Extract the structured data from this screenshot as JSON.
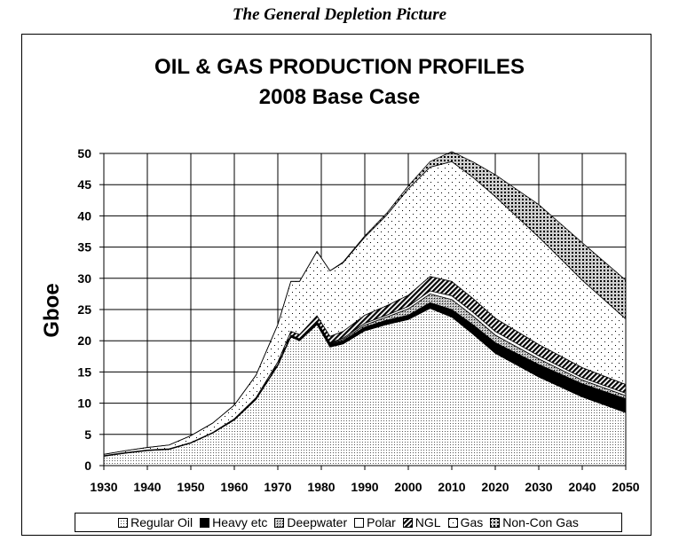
{
  "header": {
    "heading": "The General Depletion Picture"
  },
  "chart_data": {
    "type": "area",
    "stacked": true,
    "title": "OIL & GAS PRODUCTION PROFILES",
    "subtitle": "2008 Base Case",
    "xlabel": "",
    "ylabel": "Gboe",
    "xlim": [
      1930,
      2050
    ],
    "ylim": [
      0,
      50
    ],
    "x_ticks": [
      "1930",
      "1940",
      "1950",
      "1960",
      "1970",
      "1980",
      "1990",
      "2000",
      "2010",
      "2020",
      "2030",
      "2040",
      "2050"
    ],
    "y_ticks": [
      "0",
      "5",
      "10",
      "15",
      "20",
      "25",
      "30",
      "35",
      "40",
      "45",
      "50"
    ],
    "grid": true,
    "legend_position": "bottom",
    "x": [
      1930,
      1935,
      1940,
      1945,
      1950,
      1955,
      1960,
      1965,
      1970,
      1973,
      1975,
      1979,
      1982,
      1985,
      1990,
      1995,
      2000,
      2005,
      2010,
      2015,
      2020,
      2030,
      2040,
      2050
    ],
    "series": [
      {
        "name": "Regular Oil",
        "pattern": "fine-dots",
        "values": [
          1.5,
          2.0,
          2.4,
          2.6,
          3.6,
          5.2,
          7.3,
          10.6,
          16.0,
          20.6,
          20.0,
          22.6,
          19.0,
          19.5,
          21.6,
          22.6,
          23.4,
          25.2,
          23.8,
          21.0,
          18.0,
          14.2,
          11.0,
          8.5
        ]
      },
      {
        "name": "Heavy etc",
        "pattern": "solid-black",
        "values": [
          0.1,
          0.1,
          0.1,
          0.1,
          0.1,
          0.1,
          0.1,
          0.1,
          0.2,
          0.3,
          0.3,
          0.4,
          0.5,
          0.5,
          0.6,
          0.7,
          0.7,
          0.9,
          1.2,
          1.5,
          1.7,
          2.0,
          2.1,
          2.2
        ]
      },
      {
        "name": "Deepwater",
        "pattern": "dots",
        "values": [
          0,
          0,
          0,
          0,
          0,
          0,
          0,
          0,
          0,
          0,
          0,
          0,
          0.1,
          0.2,
          0.3,
          0.5,
          1.0,
          1.4,
          1.6,
          1.4,
          1.2,
          0.9,
          0.6,
          0.5
        ]
      },
      {
        "name": "Polar",
        "pattern": "white",
        "values": [
          0,
          0,
          0,
          0,
          0,
          0,
          0,
          0,
          0,
          0,
          0,
          0.1,
          0.1,
          0.2,
          0.3,
          0.3,
          0.4,
          0.5,
          0.6,
          0.6,
          0.6,
          0.5,
          0.4,
          0.4
        ]
      },
      {
        "name": "NGL",
        "pattern": "diagonal",
        "values": [
          0,
          0,
          0,
          0,
          0,
          0,
          0.1,
          0.2,
          0.4,
          0.6,
          0.7,
          0.9,
          1.0,
          1.1,
          1.3,
          1.5,
          1.8,
          2.3,
          2.3,
          2.2,
          2.1,
          1.8,
          1.6,
          1.4
        ]
      },
      {
        "name": "Gas",
        "pattern": "sparse-dots",
        "values": [
          0.2,
          0.3,
          0.4,
          0.6,
          1.1,
          1.5,
          2.2,
          3.6,
          6.0,
          8.0,
          8.5,
          10.3,
          10.5,
          11.0,
          12.5,
          14.5,
          17.0,
          17.5,
          19.2,
          19.4,
          19.5,
          17.2,
          14.0,
          10.5
        ]
      },
      {
        "name": "Non-Con Gas",
        "pattern": "heavy-dots",
        "values": [
          0,
          0,
          0,
          0,
          0,
          0,
          0,
          0,
          0,
          0,
          0,
          0,
          0,
          0.1,
          0.2,
          0.3,
          0.5,
          0.9,
          1.6,
          2.5,
          3.5,
          5.2,
          6.0,
          6.2
        ]
      }
    ]
  }
}
